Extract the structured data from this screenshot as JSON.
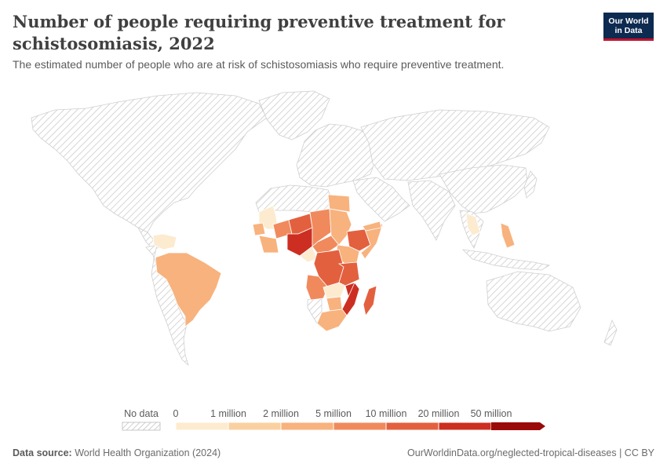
{
  "title": "Number of people requiring preventive treatment for schistosomiasis, 2022",
  "subtitle": "The estimated number of people who are at risk of schistosomiasis who require preventive treatment.",
  "logo": {
    "line1": "Our World",
    "line2": "in Data"
  },
  "legend": {
    "no_data_label": "No data",
    "bins": [
      "0",
      "1 million",
      "2 million",
      "5 million",
      "10 million",
      "20 million",
      "50 million"
    ],
    "colors": [
      "#fdebd0",
      "#fbd0a0",
      "#f8b27e",
      "#f08a5d",
      "#e3603f",
      "#cc2f22",
      "#9b0a0a"
    ]
  },
  "footer": {
    "source_label": "Data source:",
    "source_value": "World Health Organization (2024)",
    "link": "OurWorldinData.org/neglected-tropical-diseases | CC BY"
  }
}
